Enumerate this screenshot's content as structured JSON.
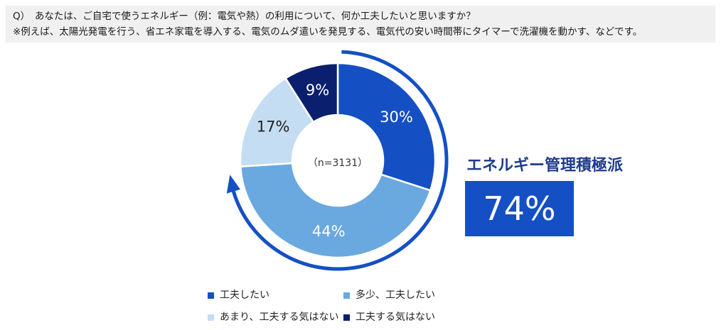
{
  "question": {
    "line1": "Q）　あなたは、ご自宅で使うエネルギー（例：電気や熱）の利用について、何か工夫したいと思いますか？",
    "line2": "※例えば、太陽光発電を行う、省エネ家電を導入する、電気のムダ遣いを発見する、電気代の安い時間帯にタイマーで洗濯機を動かす、などです。"
  },
  "chart_data": {
    "type": "pie",
    "donut": true,
    "center_label": "（n=3131）",
    "slices": [
      {
        "name": "工夫したい",
        "value": 30,
        "label": "30%",
        "color": "#1450c4",
        "label_color": "#ffffff"
      },
      {
        "name": "多少、工夫したい",
        "value": 44,
        "label": "44%",
        "color": "#6aa8e0",
        "label_color": "#ffffff"
      },
      {
        "name": "あまり、工夫する気はない",
        "value": 17,
        "label": "17%",
        "color": "#c5ddf2",
        "label_color": "#222222"
      },
      {
        "name": "工夫する気はない",
        "value": 9,
        "label": "9%",
        "color": "#0a1f6e",
        "label_color": "#ffffff"
      }
    ],
    "start_angle_deg": 0,
    "direction": "clockwise",
    "arrow_color": "#1450c4"
  },
  "summary": {
    "label": "エネルギー管理積極派",
    "value": "74%",
    "box_color": "#1450c4"
  },
  "legend": [
    {
      "label": "工夫したい",
      "color": "#1450c4"
    },
    {
      "label": "多少、工夫したい",
      "color": "#6aa8e0"
    },
    {
      "label": "あまり、工夫する気はない",
      "color": "#c5ddf2"
    },
    {
      "label": "工夫する気はない",
      "color": "#0a1f6e"
    }
  ]
}
